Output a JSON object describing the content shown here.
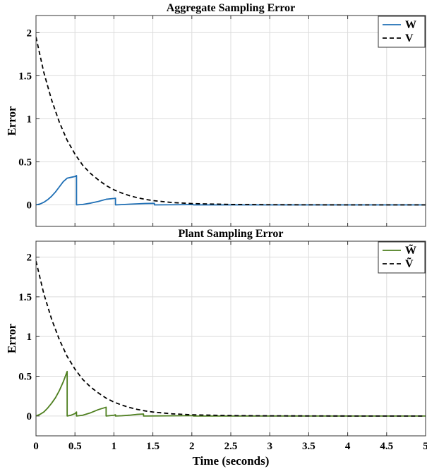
{
  "chart_data": [
    {
      "type": "line",
      "title": "Aggregate Sampling Error",
      "xlabel": "",
      "ylabel": "Error",
      "xlim": [
        0,
        5
      ],
      "ylim": [
        -0.25,
        2.2
      ],
      "xticks": [
        0,
        0.5,
        1,
        1.5,
        2,
        2.5,
        3,
        3.5,
        4,
        4.5,
        5
      ],
      "xtick_labels": [],
      "yticks": [
        0,
        0.5,
        1,
        1.5,
        2
      ],
      "ytick_labels": [
        "0",
        "0.5",
        "1",
        "1.5",
        "2"
      ],
      "grid": true,
      "legend": "top-right",
      "series": [
        {
          "name": "W",
          "color": "#1f6fb5",
          "style": "solid",
          "points": [
            [
              0,
              0
            ],
            [
              0.05,
              0.01
            ],
            [
              0.1,
              0.03
            ],
            [
              0.15,
              0.06
            ],
            [
              0.2,
              0.1
            ],
            [
              0.25,
              0.15
            ],
            [
              0.3,
              0.21
            ],
            [
              0.35,
              0.27
            ],
            [
              0.4,
              0.31
            ],
            [
              0.45,
              0.32
            ],
            [
              0.5,
              0.33
            ],
            [
              0.52,
              0.34
            ],
            [
              0.52,
              0
            ],
            [
              0.6,
              0.005
            ],
            [
              0.7,
              0.02
            ],
            [
              0.8,
              0.04
            ],
            [
              0.9,
              0.065
            ],
            [
              1.0,
              0.075
            ],
            [
              1.02,
              0.078
            ],
            [
              1.02,
              0
            ],
            [
              1.1,
              0.003
            ],
            [
              1.2,
              0.008
            ],
            [
              1.3,
              0.012
            ],
            [
              1.4,
              0.016
            ],
            [
              1.52,
              0.018
            ],
            [
              1.52,
              0
            ],
            [
              2.0,
              0.003
            ],
            [
              2.02,
              0.003
            ],
            [
              2.02,
              0
            ],
            [
              5,
              0
            ]
          ]
        },
        {
          "name": "V",
          "color": "#000000",
          "style": "dashed",
          "points": [
            [
              0,
              1.95
            ],
            [
              0.1,
              1.54
            ],
            [
              0.2,
              1.22
            ],
            [
              0.3,
              0.96
            ],
            [
              0.4,
              0.75
            ],
            [
              0.5,
              0.59
            ],
            [
              0.6,
              0.46
            ],
            [
              0.7,
              0.365
            ],
            [
              0.8,
              0.29
            ],
            [
              0.9,
              0.225
            ],
            [
              1.0,
              0.175
            ],
            [
              1.1,
              0.138
            ],
            [
              1.2,
              0.107
            ],
            [
              1.3,
              0.083
            ],
            [
              1.4,
              0.064
            ],
            [
              1.5,
              0.05
            ],
            [
              1.75,
              0.027
            ],
            [
              2.0,
              0.015
            ],
            [
              2.5,
              0.005
            ],
            [
              3.0,
              0.002
            ],
            [
              4.0,
              0.0
            ],
            [
              5.0,
              0.0
            ]
          ]
        }
      ]
    },
    {
      "type": "line",
      "title": "Plant Sampling Error",
      "xlabel": "Time (seconds)",
      "ylabel": "Error",
      "xlim": [
        0,
        5
      ],
      "ylim": [
        -0.25,
        2.2
      ],
      "xticks": [
        0,
        0.5,
        1,
        1.5,
        2,
        2.5,
        3,
        3.5,
        4,
        4.5,
        5
      ],
      "xtick_labels": [
        "0",
        "0.5",
        "1",
        "1.5",
        "2",
        "2.5",
        "3",
        "3.5",
        "4",
        "4.5",
        "5"
      ],
      "yticks": [
        0,
        0.5,
        1,
        1.5,
        2
      ],
      "ytick_labels": [
        "0",
        "0.5",
        "1",
        "1.5",
        "2"
      ],
      "grid": true,
      "legend": "top-right",
      "series": [
        {
          "name": "W̃",
          "color": "#4e7f1f",
          "style": "solid",
          "points": [
            [
              0,
              0
            ],
            [
              0.05,
              0.02
            ],
            [
              0.1,
              0.05
            ],
            [
              0.15,
              0.1
            ],
            [
              0.2,
              0.16
            ],
            [
              0.25,
              0.23
            ],
            [
              0.3,
              0.32
            ],
            [
              0.35,
              0.43
            ],
            [
              0.4,
              0.56
            ],
            [
              0.4,
              0
            ],
            [
              0.45,
              0.01
            ],
            [
              0.5,
              0.03
            ],
            [
              0.52,
              0.05
            ],
            [
              0.52,
              0
            ],
            [
              0.6,
              0.01
            ],
            [
              0.7,
              0.04
            ],
            [
              0.8,
              0.08
            ],
            [
              0.9,
              0.11
            ],
            [
              0.9,
              0
            ],
            [
              1.0,
              0.01
            ],
            [
              1.02,
              0.015
            ],
            [
              1.02,
              0
            ],
            [
              1.1,
              0.003
            ],
            [
              1.2,
              0.01
            ],
            [
              1.3,
              0.02
            ],
            [
              1.38,
              0.025
            ],
            [
              1.38,
              0
            ],
            [
              2.0,
              0.004
            ],
            [
              2.02,
              0.004
            ],
            [
              2.02,
              0
            ],
            [
              5,
              0
            ]
          ]
        },
        {
          "name": "Ṽ",
          "color": "#000000",
          "style": "dashed",
          "points": [
            [
              0,
              1.95
            ],
            [
              0.1,
              1.54
            ],
            [
              0.2,
              1.22
            ],
            [
              0.3,
              0.96
            ],
            [
              0.4,
              0.75
            ],
            [
              0.5,
              0.59
            ],
            [
              0.6,
              0.46
            ],
            [
              0.7,
              0.365
            ],
            [
              0.8,
              0.29
            ],
            [
              0.9,
              0.225
            ],
            [
              1.0,
              0.175
            ],
            [
              1.1,
              0.138
            ],
            [
              1.2,
              0.107
            ],
            [
              1.3,
              0.083
            ],
            [
              1.4,
              0.064
            ],
            [
              1.5,
              0.05
            ],
            [
              1.75,
              0.027
            ],
            [
              2.0,
              0.015
            ],
            [
              2.5,
              0.005
            ],
            [
              3.0,
              0.002
            ],
            [
              4.0,
              0.0
            ],
            [
              5.0,
              0.0
            ]
          ]
        }
      ]
    }
  ]
}
